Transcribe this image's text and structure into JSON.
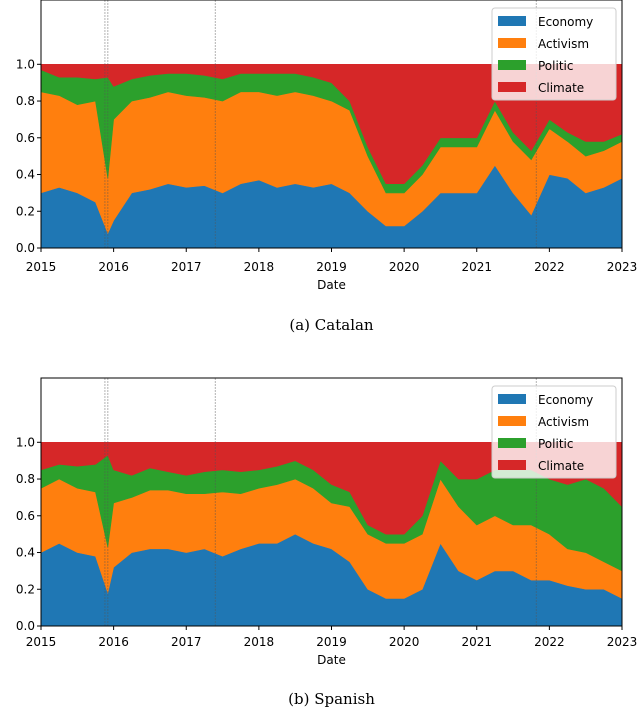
{
  "chart_data": [
    {
      "type": "area",
      "caption": "(a) Catalan",
      "xlabel": "Date",
      "ylabel": "",
      "xlim": [
        2015,
        2023
      ],
      "ylim": [
        0,
        1.35
      ],
      "yticks": [
        "0.0",
        "0.2",
        "0.4",
        "0.6",
        "0.8",
        "1.0"
      ],
      "xticks": [
        "2015",
        "2016",
        "2017",
        "2018",
        "2019",
        "2020",
        "2021",
        "2022",
        "2023"
      ],
      "stacked": true,
      "legend_position": "top-right",
      "grid": false,
      "vlines": [
        2015.88,
        2015.92,
        2017.4,
        2021.82
      ],
      "x": [
        2015.0,
        2015.25,
        2015.5,
        2015.75,
        2015.92,
        2016.0,
        2016.25,
        2016.5,
        2016.75,
        2017.0,
        2017.25,
        2017.5,
        2017.75,
        2018.0,
        2018.25,
        2018.5,
        2018.75,
        2019.0,
        2019.25,
        2019.5,
        2019.75,
        2020.0,
        2020.25,
        2020.5,
        2020.75,
        2021.0,
        2021.25,
        2021.5,
        2021.75,
        2022.0,
        2022.25,
        2022.5,
        2022.75,
        2023.0
      ],
      "series": [
        {
          "name": "Economy",
          "color": "#1f77b4",
          "values": [
            0.3,
            0.33,
            0.3,
            0.25,
            0.08,
            0.15,
            0.3,
            0.32,
            0.35,
            0.33,
            0.34,
            0.3,
            0.35,
            0.37,
            0.33,
            0.35,
            0.33,
            0.35,
            0.3,
            0.2,
            0.12,
            0.12,
            0.2,
            0.3,
            0.3,
            0.3,
            0.45,
            0.3,
            0.18,
            0.4,
            0.38,
            0.3,
            0.33,
            0.38
          ]
        },
        {
          "name": "Activism",
          "color": "#ff7f0e",
          "values": [
            0.55,
            0.5,
            0.48,
            0.55,
            0.3,
            0.55,
            0.5,
            0.5,
            0.5,
            0.5,
            0.48,
            0.5,
            0.5,
            0.48,
            0.5,
            0.5,
            0.5,
            0.45,
            0.45,
            0.3,
            0.18,
            0.18,
            0.2,
            0.25,
            0.25,
            0.25,
            0.3,
            0.28,
            0.3,
            0.25,
            0.2,
            0.2,
            0.2,
            0.2
          ]
        },
        {
          "name": "Politic",
          "color": "#2ca02c",
          "values": [
            0.12,
            0.1,
            0.15,
            0.12,
            0.55,
            0.18,
            0.12,
            0.12,
            0.1,
            0.12,
            0.12,
            0.12,
            0.1,
            0.1,
            0.12,
            0.1,
            0.1,
            0.1,
            0.05,
            0.05,
            0.05,
            0.05,
            0.05,
            0.05,
            0.05,
            0.05,
            0.05,
            0.05,
            0.05,
            0.05,
            0.05,
            0.08,
            0.05,
            0.04
          ]
        },
        {
          "name": "Climate",
          "color": "#d62728",
          "values": [
            0.03,
            0.07,
            0.07,
            0.08,
            0.07,
            0.12,
            0.08,
            0.06,
            0.05,
            0.05,
            0.06,
            0.08,
            0.05,
            0.05,
            0.05,
            0.05,
            0.07,
            0.1,
            0.2,
            0.45,
            0.65,
            0.65,
            0.55,
            0.4,
            0.4,
            0.4,
            0.2,
            0.37,
            0.47,
            0.3,
            0.37,
            0.42,
            0.42,
            0.38
          ]
        }
      ]
    },
    {
      "type": "area",
      "caption": "(b) Spanish",
      "xlabel": "Date",
      "ylabel": "",
      "xlim": [
        2015,
        2023
      ],
      "ylim": [
        0,
        1.35
      ],
      "yticks": [
        "0.0",
        "0.2",
        "0.4",
        "0.6",
        "0.8",
        "1.0"
      ],
      "xticks": [
        "2015",
        "2016",
        "2017",
        "2018",
        "2019",
        "2020",
        "2021",
        "2022",
        "2023"
      ],
      "stacked": true,
      "legend_position": "top-right",
      "grid": false,
      "vlines": [
        2015.88,
        2015.92,
        2017.4,
        2021.82
      ],
      "x": [
        2015.0,
        2015.25,
        2015.5,
        2015.75,
        2015.92,
        2016.0,
        2016.25,
        2016.5,
        2016.75,
        2017.0,
        2017.25,
        2017.5,
        2017.75,
        2018.0,
        2018.25,
        2018.5,
        2018.75,
        2019.0,
        2019.25,
        2019.5,
        2019.75,
        2020.0,
        2020.25,
        2020.5,
        2020.75,
        2021.0,
        2021.25,
        2021.5,
        2021.75,
        2022.0,
        2022.25,
        2022.5,
        2022.75,
        2023.0
      ],
      "series": [
        {
          "name": "Economy",
          "color": "#1f77b4",
          "values": [
            0.4,
            0.45,
            0.4,
            0.38,
            0.18,
            0.32,
            0.4,
            0.42,
            0.42,
            0.4,
            0.42,
            0.38,
            0.42,
            0.45,
            0.45,
            0.5,
            0.45,
            0.42,
            0.35,
            0.2,
            0.15,
            0.15,
            0.2,
            0.45,
            0.3,
            0.25,
            0.3,
            0.3,
            0.25,
            0.25,
            0.22,
            0.2,
            0.2,
            0.15
          ]
        },
        {
          "name": "Activism",
          "color": "#ff7f0e",
          "values": [
            0.35,
            0.35,
            0.35,
            0.35,
            0.25,
            0.35,
            0.3,
            0.32,
            0.32,
            0.32,
            0.3,
            0.35,
            0.3,
            0.3,
            0.32,
            0.3,
            0.3,
            0.25,
            0.3,
            0.3,
            0.3,
            0.3,
            0.3,
            0.35,
            0.35,
            0.3,
            0.3,
            0.25,
            0.3,
            0.25,
            0.2,
            0.2,
            0.15,
            0.15
          ]
        },
        {
          "name": "Politic",
          "color": "#2ca02c",
          "values": [
            0.1,
            0.08,
            0.12,
            0.15,
            0.5,
            0.18,
            0.12,
            0.12,
            0.1,
            0.1,
            0.12,
            0.12,
            0.12,
            0.1,
            0.1,
            0.1,
            0.1,
            0.1,
            0.08,
            0.05,
            0.05,
            0.05,
            0.1,
            0.1,
            0.15,
            0.25,
            0.25,
            0.3,
            0.3,
            0.3,
            0.35,
            0.4,
            0.4,
            0.35
          ]
        },
        {
          "name": "Climate",
          "color": "#d62728",
          "values": [
            0.15,
            0.12,
            0.13,
            0.12,
            0.07,
            0.15,
            0.18,
            0.14,
            0.16,
            0.18,
            0.16,
            0.15,
            0.16,
            0.15,
            0.13,
            0.1,
            0.15,
            0.23,
            0.27,
            0.45,
            0.5,
            0.5,
            0.4,
            0.1,
            0.2,
            0.2,
            0.15,
            0.15,
            0.15,
            0.2,
            0.23,
            0.2,
            0.25,
            0.35
          ]
        }
      ]
    }
  ]
}
